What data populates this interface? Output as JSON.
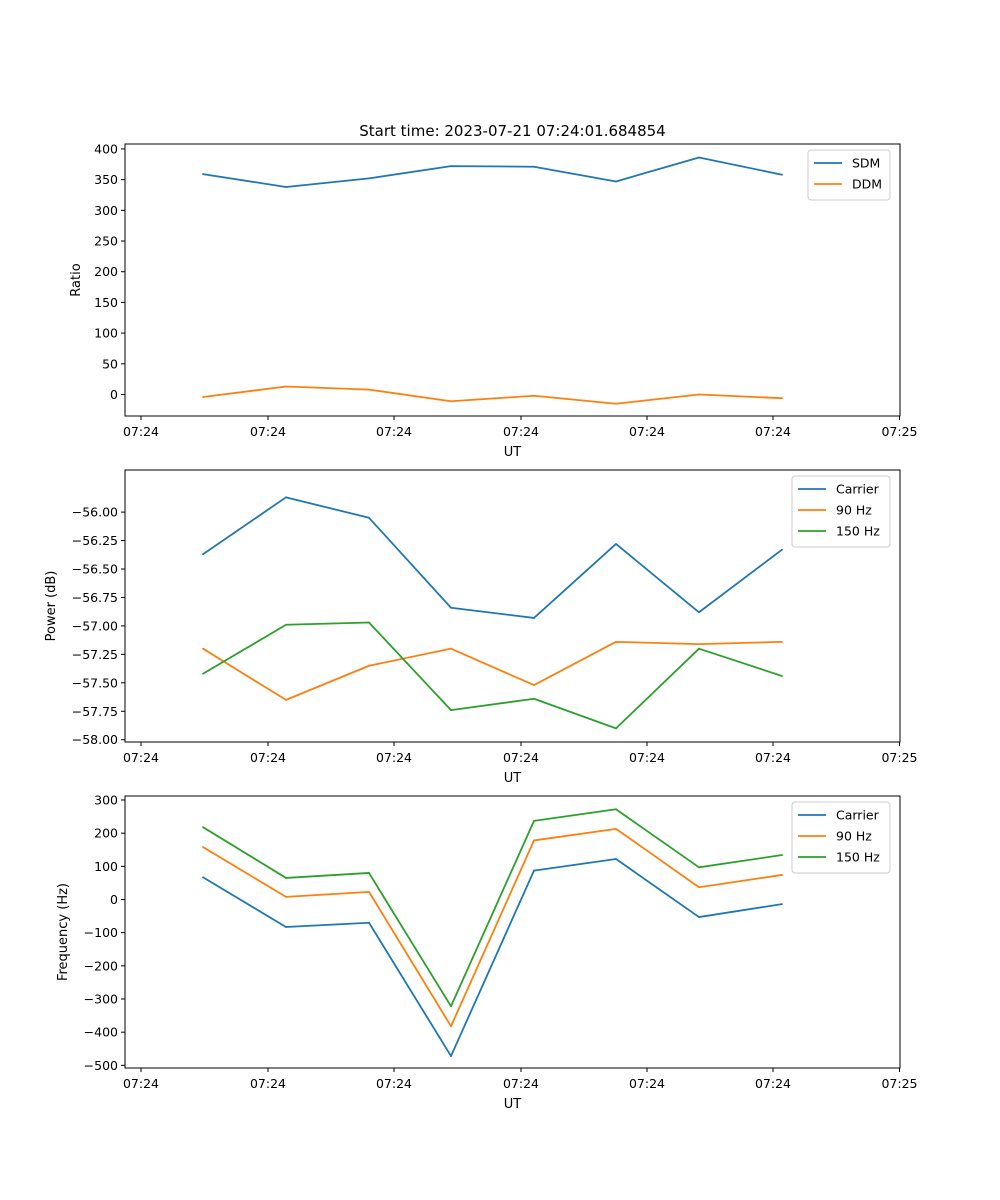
{
  "figure_title": "Start time: 2023-07-21 07:24:01.684854",
  "colors": {
    "blue": "#1f77b4",
    "orange": "#ff7f0e",
    "green": "#2ca02c",
    "axis": "#000000",
    "legend_border": "#cccccc"
  },
  "chart_data": [
    {
      "type": "line",
      "title": "Start time: 2023-07-21 07:24:01.684854",
      "xlabel": "UT",
      "ylabel": "Ratio",
      "x_ticks": [
        "07:24",
        "07:24",
        "07:24",
        "07:24",
        "07:24",
        "07:24",
        "07:24",
        "07:25"
      ],
      "x": [
        0.5,
        1.15,
        1.8,
        2.45,
        3.1,
        3.75,
        4.4,
        5.05
      ],
      "xlim": [
        -0.0,
        6.0
      ],
      "ylim": [
        -35,
        408
      ],
      "y_ticks": [
        0,
        50,
        100,
        150,
        200,
        250,
        300,
        350,
        400
      ],
      "y_tick_labels": [
        "0",
        "50",
        "100",
        "150",
        "200",
        "250",
        "300",
        "350",
        "400"
      ],
      "legend_position": "top-right",
      "series": [
        {
          "name": "SDM",
          "color": "#1f77b4",
          "values": [
            359,
            338,
            352,
            372,
            371,
            347,
            386,
            358
          ]
        },
        {
          "name": "DDM",
          "color": "#ff7f0e",
          "values": [
            -4,
            13,
            8,
            -11,
            -2,
            -15,
            0,
            -6
          ]
        }
      ]
    },
    {
      "type": "line",
      "title": "",
      "xlabel": "UT",
      "ylabel": "Power (dB)",
      "x_ticks": [
        "07:24",
        "07:24",
        "07:24",
        "07:24",
        "07:24",
        "07:24",
        "07:24",
        "07:25"
      ],
      "x": [
        0.5,
        1.15,
        1.8,
        2.45,
        3.1,
        3.75,
        4.4,
        5.05
      ],
      "xlim": [
        -0.0,
        6.0
      ],
      "ylim": [
        -58.02,
        -55.63
      ],
      "y_ticks": [
        -58.0,
        -57.75,
        -57.5,
        -57.25,
        -57.0,
        -56.75,
        -56.5,
        -56.25,
        -56.0
      ],
      "y_tick_labels": [
        "−58.00",
        "−57.75",
        "−57.50",
        "−57.25",
        "−57.00",
        "−56.75",
        "−56.50",
        "−56.25",
        "−56.00"
      ],
      "legend_position": "top-right",
      "series": [
        {
          "name": "Carrier",
          "color": "#1f77b4",
          "values": [
            -56.37,
            -55.87,
            -56.05,
            -56.84,
            -56.93,
            -56.28,
            -56.88,
            -56.33
          ]
        },
        {
          "name": "90 Hz",
          "color": "#ff7f0e",
          "values": [
            -57.2,
            -57.65,
            -57.35,
            -57.2,
            -57.52,
            -57.14,
            -57.16,
            -57.14
          ]
        },
        {
          "name": "150 Hz",
          "color": "#2ca02c",
          "values": [
            -57.42,
            -56.99,
            -56.97,
            -57.74,
            -57.64,
            -57.9,
            -57.2,
            -57.44
          ]
        }
      ]
    },
    {
      "type": "line",
      "title": "",
      "xlabel": "UT",
      "ylabel": "Frequency (Hz)",
      "x_ticks": [
        "07:24",
        "07:24",
        "07:24",
        "07:24",
        "07:24",
        "07:24",
        "07:24",
        "07:25"
      ],
      "x": [
        0.5,
        1.15,
        1.8,
        2.45,
        3.1,
        3.75,
        4.4,
        5.05
      ],
      "xlim": [
        -0.0,
        6.0
      ],
      "ylim": [
        -508,
        312
      ],
      "y_ticks": [
        -500,
        -400,
        -300,
        -200,
        -100,
        0,
        100,
        200,
        300
      ],
      "y_tick_labels": [
        "−500",
        "−400",
        "−300",
        "−200",
        "−100",
        "0",
        "100",
        "200",
        "300"
      ],
      "legend_position": "top-right",
      "series": [
        {
          "name": "Carrier",
          "color": "#1f77b4",
          "values": [
            67,
            -83,
            -70,
            -472,
            87,
            122,
            -53,
            -14
          ]
        },
        {
          "name": "90 Hz",
          "color": "#ff7f0e",
          "values": [
            158,
            8,
            23,
            -382,
            178,
            213,
            37,
            74
          ]
        },
        {
          "name": "150 Hz",
          "color": "#2ca02c",
          "values": [
            218,
            65,
            80,
            -322,
            237,
            272,
            97,
            134
          ]
        }
      ]
    }
  ]
}
